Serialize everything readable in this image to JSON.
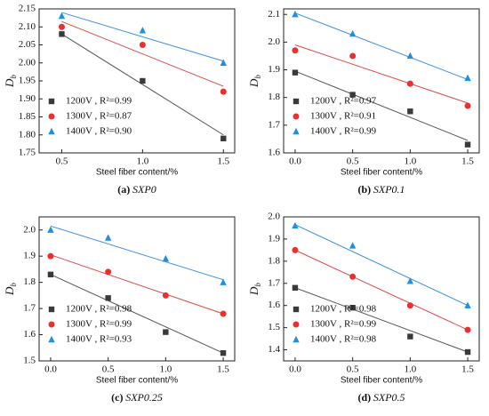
{
  "chart_data": [
    {
      "type": "scatter",
      "caption_label": "(a)",
      "caption_text": "SXP0",
      "xlabel": "Steel fiber content/%",
      "ylabel": "D",
      "ylabel_subscript": "b",
      "x": [
        0.5,
        1.0,
        1.5
      ],
      "xlim": [
        0.36,
        1.57
      ],
      "xticks": [
        {
          "value": 0.5,
          "label": "0.5"
        },
        {
          "value": 1.0,
          "label": "1.0"
        },
        {
          "value": 1.5,
          "label": "1.5"
        }
      ],
      "ylim": [
        1.75,
        2.15
      ],
      "yticks": [
        1.75,
        {
          "value": 1.8,
          "label": "1.80"
        },
        1.85,
        {
          "value": 1.9,
          "label": "1.90"
        },
        1.95,
        {
          "value": 2.0,
          "label": "2.00"
        },
        2.05,
        {
          "value": 2.1,
          "label": "2.10"
        },
        2.15
      ],
      "series": [
        {
          "name": "1200V , R²=0.99",
          "color": "#3a3a3a",
          "line_color": "#555555",
          "marker": "square",
          "values": [
            2.08,
            1.95,
            1.79
          ],
          "fit": [
            2.08,
            1.8
          ]
        },
        {
          "name": "1300V , R²=0.87",
          "color": "#e8312f",
          "line_color": "#e04848",
          "marker": "circle",
          "values": [
            2.1,
            2.05,
            1.92
          ],
          "fit": [
            2.115,
            1.935
          ]
        },
        {
          "name": "1400V , R²=0.90",
          "color": "#1f8fe0",
          "line_color": "#3a8fe0",
          "marker": "triangle",
          "values": [
            2.13,
            2.09,
            2.0
          ],
          "fit": [
            2.14,
            2.005
          ]
        }
      ]
    },
    {
      "type": "scatter",
      "caption_label": "(b)",
      "caption_text": "SXP0.1",
      "xlabel": "Steel fiber content/%",
      "ylabel": "D",
      "ylabel_subscript": "b",
      "x": [
        0,
        0.5,
        1.0,
        1.5
      ],
      "xlim": [
        -0.1,
        1.6
      ],
      "xticks": [
        {
          "value": 0,
          "label": "0.0"
        },
        {
          "value": 0.5,
          "label": "0.5"
        },
        {
          "value": 1.0,
          "label": "1.0"
        },
        {
          "value": 1.5,
          "label": "1.5"
        }
      ],
      "ylim": [
        1.6,
        2.12
      ],
      "yticks": [
        1.6,
        1.7,
        1.8,
        1.9,
        {
          "value": 2.0,
          "label": "2.0"
        },
        2.1
      ],
      "series": [
        {
          "name": "1200V , R²=0.97",
          "color": "#3a3a3a",
          "line_color": "#555555",
          "marker": "square",
          "values": [
            1.89,
            1.81,
            1.75,
            1.63
          ],
          "fit": [
            1.895,
            1.645
          ]
        },
        {
          "name": "1300V , R²=0.91",
          "color": "#e8312f",
          "line_color": "#e04848",
          "marker": "circle",
          "values": [
            1.97,
            1.95,
            1.85,
            1.77
          ],
          "fit": [
            1.99,
            1.78
          ]
        },
        {
          "name": "1400V , R²=0.99",
          "color": "#1f8fe0",
          "line_color": "#3a8fe0",
          "marker": "triangle",
          "values": [
            2.1,
            2.03,
            1.95,
            1.87
          ],
          "fit": [
            2.105,
            1.865
          ]
        }
      ]
    },
    {
      "type": "scatter",
      "caption_label": "(c)",
      "caption_text": "SXP0.25",
      "xlabel": "Steel fiber content/%",
      "ylabel": "D",
      "ylabel_subscript": "b",
      "x": [
        0,
        0.5,
        1.0,
        1.5
      ],
      "xlim": [
        -0.1,
        1.6
      ],
      "xticks": [
        {
          "value": 0,
          "label": "0.0"
        },
        {
          "value": 0.5,
          "label": "0.5"
        },
        {
          "value": 1.0,
          "label": "1.0"
        },
        {
          "value": 1.5,
          "label": "1.5"
        }
      ],
      "ylim": [
        1.5,
        2.05
      ],
      "yticks": [
        1.5,
        1.6,
        1.7,
        1.8,
        1.9,
        {
          "value": 2.0,
          "label": "2.0"
        }
      ],
      "series": [
        {
          "name": "1200V , R²=0.98",
          "color": "#3a3a3a",
          "line_color": "#555555",
          "marker": "square",
          "values": [
            1.83,
            1.74,
            1.61,
            1.53
          ],
          "fit": [
            1.83,
            1.53
          ]
        },
        {
          "name": "1300V , R²=0.99",
          "color": "#e8312f",
          "line_color": "#e04848",
          "marker": "circle",
          "values": [
            1.9,
            1.84,
            1.75,
            1.68
          ],
          "fit": [
            1.905,
            1.68
          ]
        },
        {
          "name": "1400V , R²=0.93",
          "color": "#1f8fe0",
          "line_color": "#3a8fe0",
          "marker": "triangle",
          "values": [
            2.0,
            1.97,
            1.89,
            1.8
          ],
          "fit": [
            2.015,
            1.81
          ]
        }
      ]
    },
    {
      "type": "scatter",
      "caption_label": "(d)",
      "caption_text": "SXP0.5",
      "xlabel": "Steel fiber content/%",
      "ylabel": "D",
      "ylabel_subscript": "b",
      "x": [
        0,
        0.5,
        1.0,
        1.5
      ],
      "xlim": [
        -0.1,
        1.6
      ],
      "xticks": [
        {
          "value": 0,
          "label": "0.0"
        },
        {
          "value": 0.5,
          "label": "0.5"
        },
        {
          "value": 1.0,
          "label": "1.0"
        },
        {
          "value": 1.5,
          "label": "1.5"
        }
      ],
      "ylim": [
        1.35,
        2.0
      ],
      "yticks": [
        1.4,
        1.5,
        1.6,
        1.7,
        1.8,
        1.9,
        {
          "value": 2.0,
          "label": "2.0"
        }
      ],
      "series": [
        {
          "name": "1200V , R²=0.98",
          "color": "#3a3a3a",
          "line_color": "#555555",
          "marker": "square",
          "values": [
            1.68,
            1.59,
            1.46,
            1.39
          ],
          "fit": [
            1.68,
            1.39
          ]
        },
        {
          "name": "1300V , R²=0.99",
          "color": "#e8312f",
          "line_color": "#e04848",
          "marker": "circle",
          "values": [
            1.85,
            1.73,
            1.6,
            1.49
          ],
          "fit": [
            1.85,
            1.49
          ]
        },
        {
          "name": "1400V , R²=0.98",
          "color": "#1f8fe0",
          "line_color": "#3a8fe0",
          "marker": "triangle",
          "values": [
            1.96,
            1.87,
            1.71,
            1.6
          ],
          "fit": [
            1.965,
            1.6
          ]
        }
      ]
    }
  ]
}
